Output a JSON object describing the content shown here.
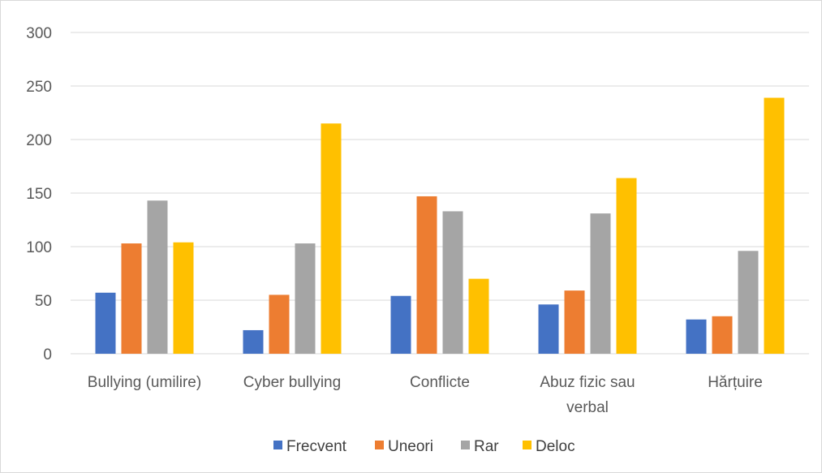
{
  "chart_data": {
    "type": "bar",
    "categories": [
      [
        "Bullying (umilire)"
      ],
      [
        "Cyber bullying"
      ],
      [
        "Conflicte"
      ],
      [
        "Abuz fizic sau",
        "verbal"
      ],
      [
        "Hărțuire"
      ]
    ],
    "series": [
      {
        "name": "Frecvent",
        "color": "#4472C4",
        "values": [
          57,
          22,
          54,
          46,
          32
        ]
      },
      {
        "name": "Uneori",
        "color": "#ED7D31",
        "values": [
          103,
          55,
          147,
          59,
          35
        ]
      },
      {
        "name": "Rar",
        "color": "#A5A5A5",
        "values": [
          143,
          103,
          133,
          131,
          96
        ]
      },
      {
        "name": "Deloc",
        "color": "#FFC000",
        "values": [
          104,
          215,
          70,
          164,
          239
        ]
      }
    ],
    "ylim": [
      0,
      300
    ],
    "yticks": [
      0,
      50,
      100,
      150,
      200,
      250,
      300
    ],
    "grid": true,
    "gridline_color": "#d9d9d9",
    "legend_position": "bottom"
  }
}
